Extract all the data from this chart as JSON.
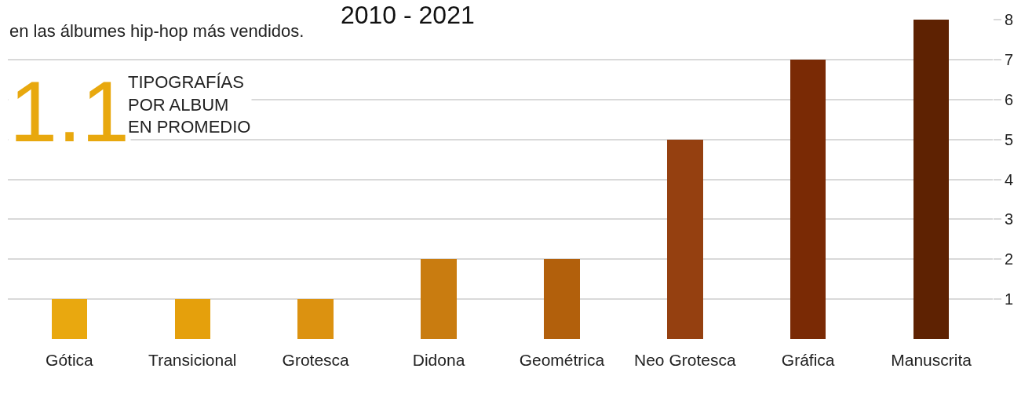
{
  "chart_data": {
    "type": "bar",
    "title": "2010 - 2021",
    "subtitle": "en las álbumes hip-hop más vendidos.",
    "annotations": [
      "1.1",
      "TIPOGRAFÍAS\nPOR ALBUM\nEN PROMEDIO"
    ],
    "categories": [
      "Gótica",
      "Transicional",
      "Grotesca",
      "Didona",
      "Geométrica",
      "Neo Grotesca",
      "Gráfica",
      "Manuscrita"
    ],
    "values": [
      1,
      1,
      1,
      2,
      2,
      5,
      7,
      8
    ],
    "colors": [
      "#e9a80f",
      "#e5a00c",
      "#dc9210",
      "#c97c10",
      "#b2600c",
      "#954010",
      "#7a2a05",
      "#5e2202"
    ],
    "ylim": [
      0,
      8
    ],
    "yticks": [
      1,
      2,
      3,
      4,
      5,
      6,
      7,
      8
    ],
    "grid": "y"
  }
}
